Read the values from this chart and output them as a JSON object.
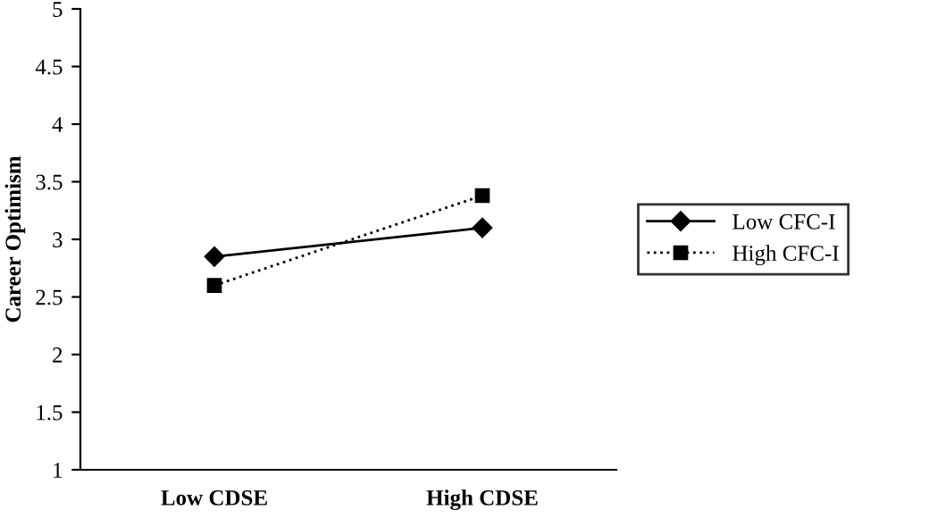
{
  "chart_data": {
    "type": "line",
    "ylabel": "Career Optimism",
    "categories": [
      "Low CDSE",
      "High CDSE"
    ],
    "series": [
      {
        "name": "Low CFC-I",
        "color": "#000000",
        "values": [
          2.85,
          3.1
        ],
        "marker": "diamond",
        "line_style": "solid"
      },
      {
        "name": "High CFC-I",
        "color": "#000000",
        "values": [
          2.6,
          3.38
        ],
        "marker": "square",
        "line_style": "dotted"
      }
    ],
    "ylim": [
      1,
      5
    ],
    "yticks": [
      1,
      1.5,
      2,
      2.5,
      3,
      3.5,
      4,
      4.5,
      5
    ],
    "grid": false,
    "legend": "right"
  }
}
